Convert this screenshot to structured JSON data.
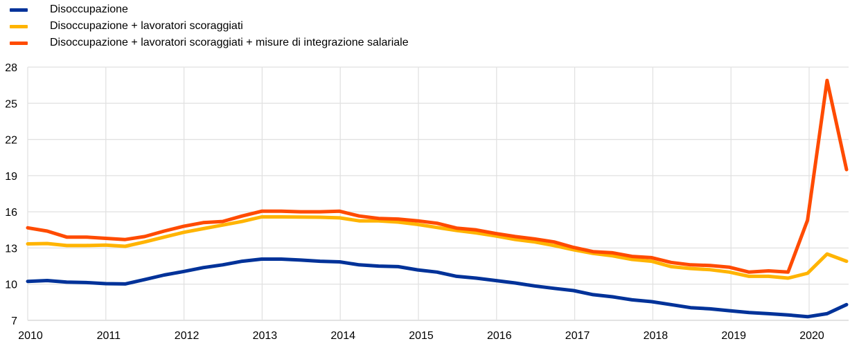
{
  "chart_data": {
    "type": "line",
    "title": "",
    "xlabel": "",
    "ylabel": "",
    "ylim": [
      7,
      28
    ],
    "yticks": [
      "7",
      "10",
      "13",
      "16",
      "19",
      "22",
      "25",
      "28"
    ],
    "xticks": [
      "2010",
      "2011",
      "2012",
      "2013",
      "2014",
      "2015",
      "2016",
      "2017",
      "2018",
      "2019",
      "2020"
    ],
    "grid": true,
    "legend_position": "top-left",
    "x": [
      "2010Q1",
      "2010Q2",
      "2010Q3",
      "2010Q4",
      "2011Q1",
      "2011Q2",
      "2011Q3",
      "2011Q4",
      "2012Q1",
      "2012Q2",
      "2012Q3",
      "2012Q4",
      "2013Q1",
      "2013Q2",
      "2013Q3",
      "2013Q4",
      "2014Q1",
      "2014Q2",
      "2014Q3",
      "2014Q4",
      "2015Q1",
      "2015Q2",
      "2015Q3",
      "2015Q4",
      "2016Q1",
      "2016Q2",
      "2016Q3",
      "2016Q4",
      "2017Q1",
      "2017Q2",
      "2017Q3",
      "2017Q4",
      "2018Q1",
      "2018Q2",
      "2018Q3",
      "2018Q4",
      "2019Q1",
      "2019Q2",
      "2019Q3",
      "2019Q4",
      "2020Q1",
      "2020Q2",
      "2020Q3"
    ],
    "series": [
      {
        "name": "Disoccupazione",
        "color": "#003299",
        "values": [
          10.23,
          10.3,
          10.17,
          10.13,
          10.04,
          10.02,
          10.38,
          10.76,
          11.05,
          11.37,
          11.6,
          11.9,
          12.08,
          12.08,
          12.0,
          11.9,
          11.85,
          11.6,
          11.5,
          11.45,
          11.18,
          11.0,
          10.65,
          10.5,
          10.3,
          10.1,
          9.85,
          9.65,
          9.47,
          9.13,
          8.95,
          8.7,
          8.55,
          8.3,
          8.05,
          7.95,
          7.8,
          7.65,
          7.55,
          7.45,
          7.3,
          7.55,
          8.3
        ]
      },
      {
        "name": "Disoccupazione + lavoratori scoraggiati",
        "color": "#ffb400",
        "values": [
          13.34,
          13.37,
          13.2,
          13.2,
          13.24,
          13.14,
          13.5,
          13.9,
          14.3,
          14.6,
          14.9,
          15.2,
          15.58,
          15.58,
          15.56,
          15.55,
          15.5,
          15.25,
          15.25,
          15.15,
          14.95,
          14.7,
          14.45,
          14.25,
          14.0,
          13.7,
          13.5,
          13.2,
          12.85,
          12.55,
          12.35,
          12.05,
          11.9,
          11.45,
          11.3,
          11.2,
          11.0,
          10.65,
          10.65,
          10.5,
          10.9,
          12.5,
          11.9
        ]
      },
      {
        "name": "Disoccupazione + lavoratori scoraggiati + misure di integrazione salariale",
        "color": "#ff4b00",
        "values": [
          14.67,
          14.4,
          13.9,
          13.9,
          13.8,
          13.7,
          13.95,
          14.4,
          14.8,
          15.1,
          15.2,
          15.65,
          16.05,
          16.05,
          16.0,
          16.0,
          16.05,
          15.65,
          15.45,
          15.4,
          15.25,
          15.05,
          14.65,
          14.5,
          14.2,
          13.95,
          13.75,
          13.5,
          13.05,
          12.7,
          12.6,
          12.3,
          12.2,
          11.8,
          11.6,
          11.55,
          11.4,
          11.0,
          11.1,
          11.0,
          15.3,
          26.9,
          19.5
        ]
      }
    ]
  }
}
